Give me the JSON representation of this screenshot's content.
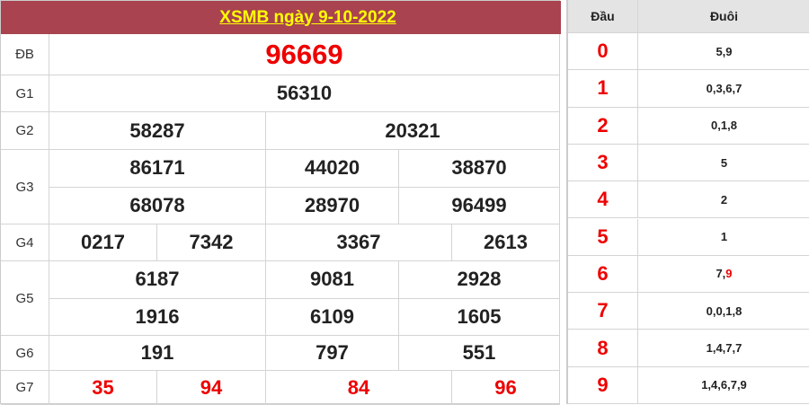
{
  "title": "XSMB ngày 9-10-2022",
  "prizes": {
    "db": {
      "label": "ĐB",
      "numbers": [
        "96669"
      ]
    },
    "g1": {
      "label": "G1",
      "numbers": [
        "56310"
      ]
    },
    "g2": {
      "label": "G2",
      "numbers": [
        "58287",
        "20321"
      ]
    },
    "g3": {
      "label": "G3",
      "numbers": [
        "86171",
        "44020",
        "38870",
        "68078",
        "28970",
        "96499"
      ]
    },
    "g4": {
      "label": "G4",
      "numbers": [
        "0217",
        "7342",
        "3367",
        "2613"
      ]
    },
    "g5": {
      "label": "G5",
      "numbers": [
        "6187",
        "9081",
        "2928",
        "1916",
        "6109",
        "1605"
      ]
    },
    "g6": {
      "label": "G6",
      "numbers": [
        "191",
        "797",
        "551"
      ]
    },
    "g7": {
      "label": "G7",
      "numbers": [
        "35",
        "94",
        "84",
        "96"
      ]
    }
  },
  "loto": {
    "head_label": "Đầu",
    "tail_label": "Đuôi",
    "rows": [
      {
        "head": "0",
        "tail": "5,9"
      },
      {
        "head": "1",
        "tail": "0,3,6,7"
      },
      {
        "head": "2",
        "tail": "0,1,8"
      },
      {
        "head": "3",
        "tail": "5"
      },
      {
        "head": "4",
        "tail": "2"
      },
      {
        "head": "5",
        "tail": "1"
      },
      {
        "head": "6",
        "tail": "7,",
        "tail_highlight": "9"
      },
      {
        "head": "7",
        "tail": "0,0,1,8"
      },
      {
        "head": "8",
        "tail": "1,4,7,7"
      },
      {
        "head": "9",
        "tail": "1,4,6,7,9"
      }
    ]
  },
  "colors": {
    "header_bg": "#a8434f",
    "title": "#ffff00",
    "highlight": "#ee0000"
  }
}
